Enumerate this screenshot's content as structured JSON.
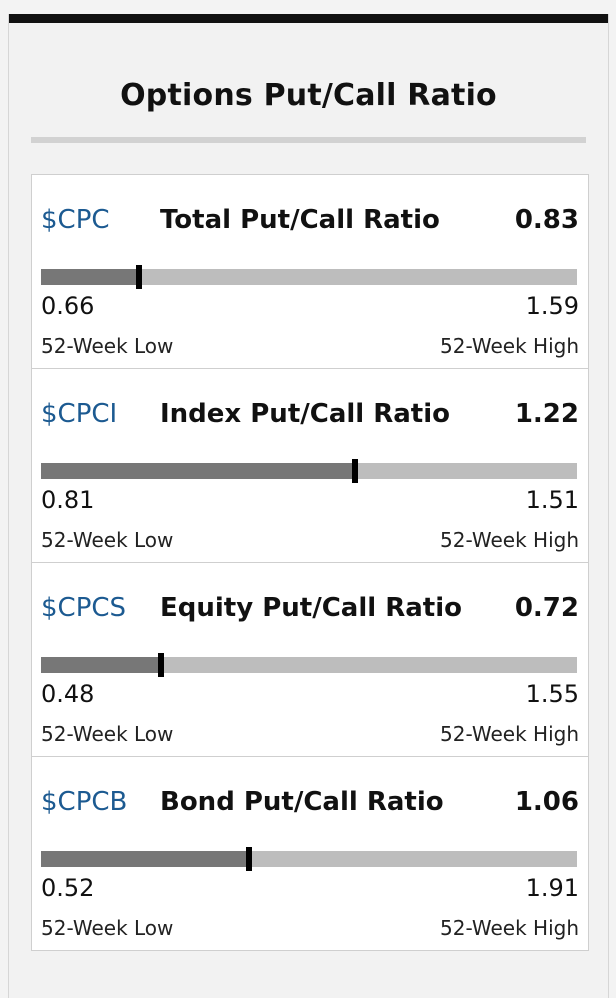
{
  "widget": {
    "title": "Options Put/Call Ratio",
    "low_label": "52-Week Low",
    "high_label": "52-Week High"
  },
  "colors": {
    "symbol_link": "#1c5a91",
    "bar_track": "#bdbdbd",
    "bar_fill": "#777777",
    "marker": "#000000"
  },
  "ratios": [
    {
      "symbol": "$CPC",
      "name": "Total Put/Call Ratio",
      "value": "0.83",
      "low": "0.66",
      "high": "1.59",
      "position_fraction": 0.183
    },
    {
      "symbol": "$CPCI",
      "name": "Index Put/Call Ratio",
      "value": "1.22",
      "low": "0.81",
      "high": "1.51",
      "position_fraction": 0.586
    },
    {
      "symbol": "$CPCS",
      "name": "Equity Put/Call Ratio",
      "value": "0.72",
      "low": "0.48",
      "high": "1.55",
      "position_fraction": 0.224
    },
    {
      "symbol": "$CPCB",
      "name": "Bond Put/Call Ratio",
      "value": "1.06",
      "low": "0.52",
      "high": "1.91",
      "position_fraction": 0.388
    }
  ]
}
